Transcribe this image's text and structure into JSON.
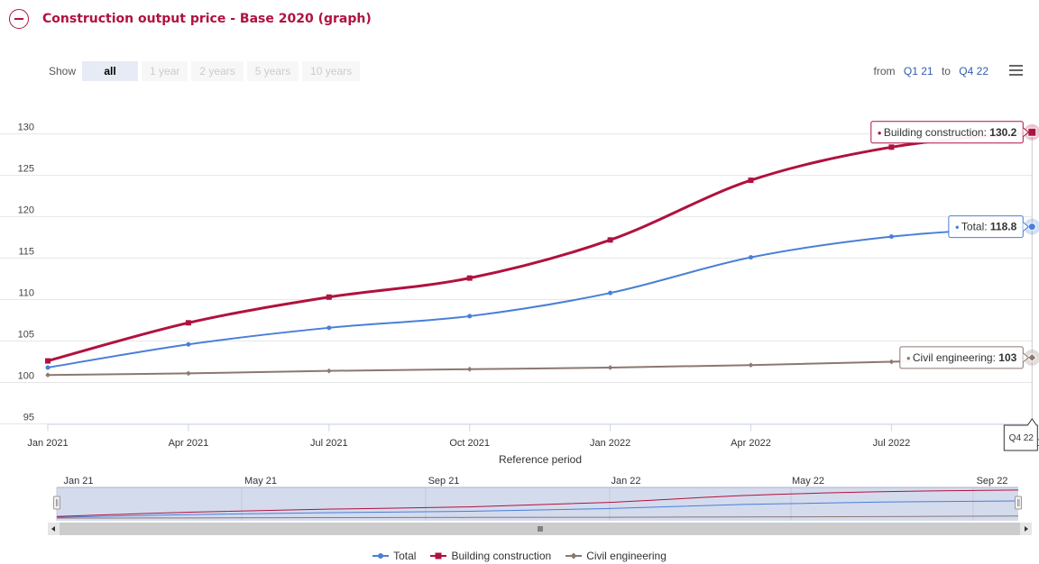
{
  "header": {
    "title": "Construction output price - Base 2020 (graph)"
  },
  "range_selector": {
    "show_label": "Show",
    "buttons": [
      "all",
      "1 year",
      "2 years",
      "5 years",
      "10 years"
    ],
    "active": "all",
    "from_label": "from",
    "from_value": "Q1 21",
    "to_label": "to",
    "to_value": "Q4 22"
  },
  "colors": {
    "total": "#4a7fd6",
    "building": "#b0123f",
    "civil": "#8c7771"
  },
  "chart_data": {
    "type": "line",
    "x": [
      "Jan 2021",
      "Apr 2021",
      "Jul 2021",
      "Oct 2021",
      "Jan 2022",
      "Apr 2022",
      "Jul 2022",
      "Oct 2022"
    ],
    "x_tick_labels": [
      "Jan 2021",
      "Apr 2021",
      "Jul 2021",
      "Oct 2021",
      "Jan 2022",
      "Apr 2022",
      "Jul 2022",
      "Oct 2022"
    ],
    "xlabel": "Reference period",
    "ylabel": "",
    "ylim": [
      95,
      130
    ],
    "y_ticks": [
      95,
      100,
      105,
      110,
      115,
      120,
      125,
      130
    ],
    "grid": true,
    "legend_position": "bottom",
    "series": [
      {
        "name": "Total",
        "key": "total",
        "marker": "circle",
        "values": [
          101.8,
          104.6,
          106.6,
          108.0,
          110.8,
          115.1,
          117.6,
          118.8
        ]
      },
      {
        "name": "Building construction",
        "key": "building",
        "marker": "square",
        "values": [
          102.6,
          107.2,
          110.3,
          112.6,
          117.2,
          124.4,
          128.4,
          130.2
        ]
      },
      {
        "name": "Civil engineering",
        "key": "civil",
        "marker": "diamond",
        "values": [
          100.9,
          101.1,
          101.4,
          101.6,
          101.8,
          102.1,
          102.5,
          103.0
        ]
      }
    ],
    "tooltips": [
      {
        "series": "building",
        "label": "Building construction: ",
        "value": "130.2"
      },
      {
        "series": "total",
        "label": "Total: ",
        "value": "118.8"
      },
      {
        "series": "civil",
        "label": "Civil engineering: ",
        "value": "103"
      }
    ],
    "crosshair_label": "Q4 22",
    "navigator_labels": [
      "Jan 21",
      "May 21",
      "Sep 21",
      "Jan 22",
      "May 22",
      "Sep 22"
    ]
  }
}
